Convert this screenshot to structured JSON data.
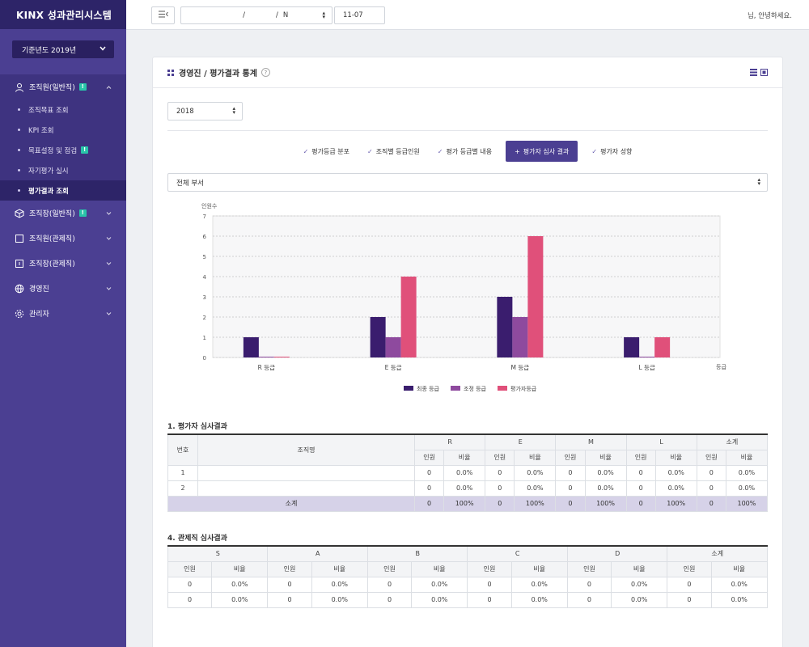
{
  "app": {
    "logo": "KINX 성과관리시스템"
  },
  "sidebar": {
    "year_label": "기준년도 2019년",
    "menu": [
      {
        "label": "조직원(일반직)",
        "badge": "!",
        "open": true
      },
      {
        "label": "조직장(일반직)",
        "badge": "!"
      },
      {
        "label": "조직원(관제직)"
      },
      {
        "label": "조직장(관제직)"
      },
      {
        "label": "경영진"
      },
      {
        "label": "관리자"
      }
    ],
    "submenu": [
      {
        "label": "조직목표 조회"
      },
      {
        "label": "KPI 조회"
      },
      {
        "label": "목표설정 및 점검",
        "badge": "!"
      },
      {
        "label": "자기평가 실시"
      },
      {
        "label": "평가결과 조회",
        "active": true
      }
    ]
  },
  "topbar": {
    "breadcrumb_a": "",
    "breadcrumb_b": "",
    "breadcrumb_c": "N",
    "date_value": "11-07",
    "greeting_name": "",
    "greeting_suffix": "님, 안녕하세요."
  },
  "panel": {
    "title": "경영진 / 평가결과 통계",
    "help": "?",
    "year": "2018",
    "dept": "전체 부서",
    "tabs": [
      {
        "label": "평가등급 분포",
        "mark": "✓"
      },
      {
        "label": "조직별 등급인원",
        "mark": "✓"
      },
      {
        "label": "평가 등급별 내용",
        "mark": "✓"
      },
      {
        "label": "평가자 심사 결과",
        "mark": "+",
        "active": true
      },
      {
        "label": "평가자 성향",
        "mark": "✓"
      }
    ]
  },
  "colors": {
    "primary": "#4b3f92",
    "final": "#3a1d6e",
    "adjusted": "#8e4a9e",
    "evaluator": "#e0507a"
  },
  "chart_data": {
    "type": "bar",
    "ylabel": "인원수",
    "xlabel": "등급",
    "categories": [
      "R 등급",
      "E 등급",
      "M 등급",
      "L 등급"
    ],
    "ylim": [
      0,
      7
    ],
    "yticks": [
      0,
      1,
      2,
      3,
      4,
      5,
      6,
      7
    ],
    "grid": true,
    "legend_position": "bottom",
    "series": [
      {
        "name": "최종 등급",
        "values": [
          1,
          2,
          3,
          1
        ]
      },
      {
        "name": "조정 등급",
        "values": [
          0,
          1,
          2,
          0
        ]
      },
      {
        "name": "평가자등급",
        "values": [
          0,
          4,
          6,
          1
        ]
      }
    ]
  },
  "table1": {
    "title": "1. 평가자 심사결과",
    "col_no": "번호",
    "col_org": "조직명",
    "groups": [
      "R",
      "E",
      "M",
      "L",
      "소계"
    ],
    "sub": [
      "인원",
      "비율"
    ],
    "rows": [
      {
        "no": "1",
        "org": "",
        "cells": [
          "0",
          "0.0%",
          "0",
          "0.0%",
          "0",
          "0.0%",
          "0",
          "0.0%",
          "0",
          "0.0%"
        ]
      },
      {
        "no": "2",
        "org": "",
        "cells": [
          "0",
          "0.0%",
          "0",
          "0.0%",
          "0",
          "0.0%",
          "0",
          "0.0%",
          "0",
          "0.0%"
        ]
      }
    ],
    "subtotal": {
      "label": "소계",
      "cells": [
        "0",
        "100%",
        "0",
        "100%",
        "0",
        "100%",
        "0",
        "100%",
        "0",
        "100%"
      ]
    }
  },
  "table2": {
    "title": "4. 관제직 심사결과",
    "groups": [
      "S",
      "A",
      "B",
      "C",
      "D",
      "소계"
    ],
    "sub": [
      "인원",
      "비율"
    ],
    "rows": [
      {
        "cells": [
          "0",
          "0.0%",
          "0",
          "0.0%",
          "0",
          "0.0%",
          "0",
          "0.0%",
          "0",
          "0.0%",
          "0",
          "0.0%"
        ]
      },
      {
        "cells": [
          "0",
          "0.0%",
          "0",
          "0.0%",
          "0",
          "0.0%",
          "0",
          "0.0%",
          "0",
          "0.0%",
          "0",
          "0.0%"
        ]
      }
    ]
  }
}
